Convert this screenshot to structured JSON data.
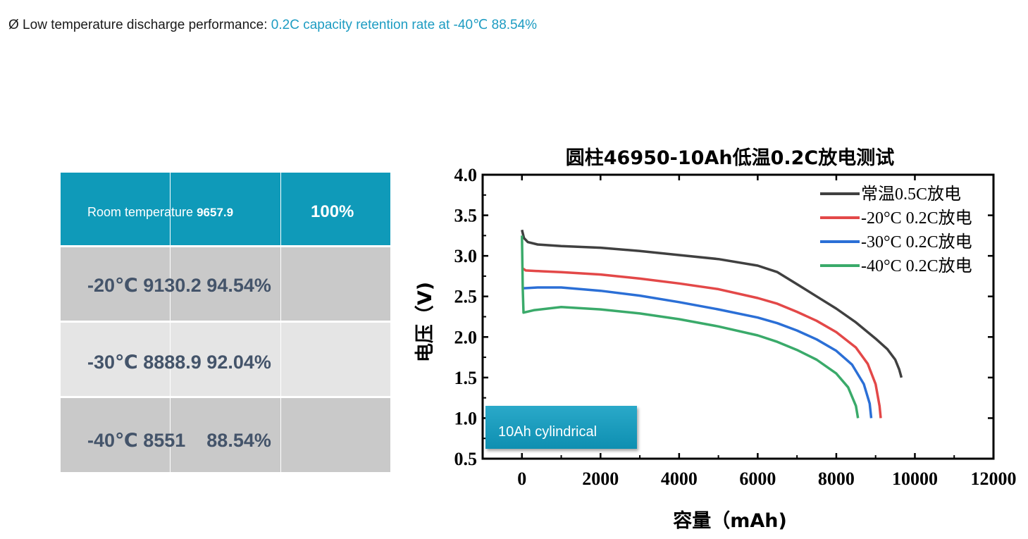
{
  "headline": {
    "prefix": "Ø Low temperature discharge performance: ",
    "highlight": "0.2C capacity retention rate at -40℃ 88.54%"
  },
  "table": {
    "header": {
      "label": "Room temperature ",
      "capacity": "9657.9",
      "retention": "100%"
    },
    "rows": [
      {
        "text": "-20℃ 9130.2 94.54%"
      },
      {
        "text": "-30℃ 8888.9 92.04%"
      },
      {
        "text": "-40℃ 8551    88.54%"
      }
    ]
  },
  "callout": "10Ah cylindrical",
  "colors": {
    "accent": "#0f9ab9",
    "series_room": "#404040",
    "series_m20": "#e34848",
    "series_m30": "#2b6fd6",
    "series_m40": "#3aaa6a"
  },
  "chart_data": {
    "type": "line",
    "title": "圆柱46950-10Ah低温0.2C放电测试",
    "xlabel": "容量（mAh)",
    "ylabel": "电压（V)",
    "xlim": [
      -1000,
      12000
    ],
    "ylim": [
      0.5,
      4.0
    ],
    "xticks": [
      "0",
      "2000",
      "4000",
      "6000",
      "8000",
      "10000",
      "12000"
    ],
    "yticks": [
      "0.5",
      "1.0",
      "1.5",
      "2.0",
      "2.5",
      "3.0",
      "3.5",
      "4.0"
    ],
    "legend_position": "top-right",
    "series": [
      {
        "name": "常温0.5C放电",
        "color": "#404040",
        "points": [
          [
            0,
            3.32
          ],
          [
            50,
            3.22
          ],
          [
            150,
            3.17
          ],
          [
            400,
            3.14
          ],
          [
            1000,
            3.12
          ],
          [
            2000,
            3.1
          ],
          [
            3000,
            3.06
          ],
          [
            4000,
            3.01
          ],
          [
            5000,
            2.96
          ],
          [
            6000,
            2.88
          ],
          [
            6500,
            2.8
          ],
          [
            7000,
            2.65
          ],
          [
            7500,
            2.5
          ],
          [
            8000,
            2.35
          ],
          [
            8500,
            2.18
          ],
          [
            9000,
            1.98
          ],
          [
            9300,
            1.85
          ],
          [
            9500,
            1.72
          ],
          [
            9600,
            1.6
          ],
          [
            9657.9,
            1.5
          ]
        ]
      },
      {
        "name": "-20°C 0.2C放电",
        "color": "#e34848",
        "points": [
          [
            0,
            2.85
          ],
          [
            100,
            2.82
          ],
          [
            500,
            2.81
          ],
          [
            1000,
            2.8
          ],
          [
            2000,
            2.77
          ],
          [
            3000,
            2.72
          ],
          [
            4000,
            2.66
          ],
          [
            5000,
            2.59
          ],
          [
            6000,
            2.48
          ],
          [
            6500,
            2.41
          ],
          [
            7000,
            2.31
          ],
          [
            7500,
            2.2
          ],
          [
            8000,
            2.06
          ],
          [
            8500,
            1.87
          ],
          [
            8800,
            1.67
          ],
          [
            9000,
            1.42
          ],
          [
            9100,
            1.15
          ],
          [
            9130.2,
            1.0
          ]
        ]
      },
      {
        "name": "-30°C 0.2C放电",
        "color": "#2b6fd6",
        "points": [
          [
            0,
            2.6
          ],
          [
            400,
            2.61
          ],
          [
            1000,
            2.61
          ],
          [
            2000,
            2.57
          ],
          [
            3000,
            2.51
          ],
          [
            4000,
            2.43
          ],
          [
            5000,
            2.34
          ],
          [
            6000,
            2.24
          ],
          [
            6500,
            2.17
          ],
          [
            7000,
            2.08
          ],
          [
            7500,
            1.97
          ],
          [
            8000,
            1.83
          ],
          [
            8400,
            1.66
          ],
          [
            8700,
            1.42
          ],
          [
            8850,
            1.18
          ],
          [
            8888.9,
            1.0
          ]
        ]
      },
      {
        "name": "-40°C 0.2C放电",
        "color": "#3aaa6a",
        "points": [
          [
            0,
            3.25
          ],
          [
            20,
            2.6
          ],
          [
            40,
            2.3
          ],
          [
            300,
            2.33
          ],
          [
            1000,
            2.37
          ],
          [
            2000,
            2.34
          ],
          [
            3000,
            2.29
          ],
          [
            4000,
            2.22
          ],
          [
            5000,
            2.13
          ],
          [
            6000,
            2.02
          ],
          [
            6500,
            1.94
          ],
          [
            7000,
            1.84
          ],
          [
            7500,
            1.72
          ],
          [
            8000,
            1.55
          ],
          [
            8300,
            1.38
          ],
          [
            8500,
            1.15
          ],
          [
            8551,
            1.0
          ]
        ]
      }
    ]
  }
}
